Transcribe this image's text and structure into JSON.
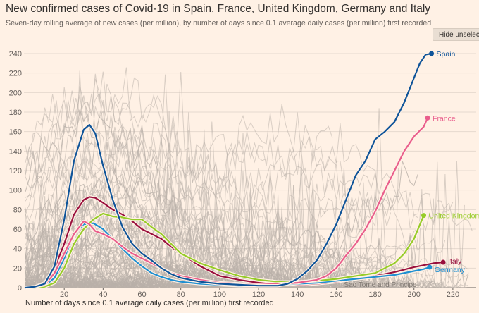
{
  "header": {
    "title": "New confirmed cases of Covid-19 in Spain, France, United Kingdom, Germany and Italy",
    "subtitle": "Seven-day rolling average of new cases (per million), by number of days since 0.1 average daily cases (per million) first recorded"
  },
  "controls": {
    "hide_button_label": "Hide unselected"
  },
  "chart_data": {
    "type": "line",
    "title": "New confirmed cases of Covid-19 in Spain, France, United Kingdom, Germany and Italy",
    "xlabel": "Number of days since 0.1 average daily cases (per million) first recorded",
    "ylabel": "",
    "xlim": [
      0,
      232
    ],
    "ylim": [
      0,
      240
    ],
    "x_ticks": [
      20,
      40,
      60,
      80,
      100,
      120,
      140,
      160,
      180,
      200,
      220
    ],
    "y_ticks": [
      0,
      20,
      40,
      60,
      80,
      100,
      120,
      140,
      160,
      180,
      200,
      220,
      240
    ],
    "grid": true,
    "colors": {
      "background": "#fff1e5",
      "grid": "#e6d9ce",
      "axis_text": "#66605c",
      "background_lines": "#b9b0aa"
    },
    "annotation_label": "Sao Tome and Principe",
    "series": [
      {
        "name": "Spain",
        "color": "#0f5499",
        "x": [
          0,
          5,
          10,
          15,
          20,
          25,
          30,
          33,
          36,
          40,
          45,
          50,
          55,
          60,
          65,
          70,
          75,
          80,
          90,
          100,
          110,
          120,
          130,
          135,
          140,
          145,
          150,
          155,
          160,
          163,
          166,
          170,
          175,
          180,
          185,
          190,
          195,
          200,
          203,
          206,
          209
        ],
        "values": [
          0,
          1,
          4,
          22,
          70,
          130,
          162,
          167,
          158,
          125,
          90,
          62,
          45,
          35,
          28,
          20,
          14,
          10,
          6,
          4,
          3,
          2,
          2,
          4,
          9,
          17,
          28,
          45,
          65,
          80,
          95,
          115,
          130,
          152,
          160,
          170,
          190,
          215,
          230,
          239,
          240
        ]
      },
      {
        "name": "France",
        "color": "#e95d8c",
        "x": [
          0,
          5,
          10,
          15,
          20,
          25,
          30,
          33,
          36,
          40,
          45,
          50,
          55,
          60,
          65,
          70,
          75,
          80,
          90,
          100,
          110,
          120,
          130,
          140,
          150,
          155,
          160,
          165,
          170,
          175,
          180,
          185,
          190,
          195,
          200,
          205,
          207
        ],
        "values": [
          0,
          1,
          3,
          15,
          35,
          55,
          68,
          65,
          58,
          55,
          50,
          42,
          35,
          30,
          25,
          20,
          15,
          12,
          8,
          5,
          4,
          3,
          4,
          5,
          8,
          12,
          20,
          33,
          45,
          60,
          78,
          100,
          120,
          140,
          155,
          165,
          174
        ]
      },
      {
        "name": "United Kingdom",
        "color": "#96cc28",
        "x": [
          0,
          5,
          10,
          15,
          20,
          25,
          30,
          35,
          40,
          45,
          50,
          55,
          60,
          65,
          70,
          75,
          80,
          90,
          100,
          110,
          120,
          130,
          140,
          150,
          160,
          170,
          180,
          190,
          195,
          200,
          205
        ],
        "values": [
          0,
          0,
          1,
          5,
          20,
          45,
          60,
          70,
          76,
          73,
          72,
          70,
          70,
          62,
          55,
          45,
          35,
          25,
          18,
          12,
          8,
          6,
          6,
          7,
          9,
          12,
          15,
          25,
          35,
          50,
          74
        ]
      },
      {
        "name": "Germany",
        "color": "#1f8fd1",
        "x": [
          0,
          5,
          10,
          15,
          20,
          25,
          30,
          35,
          40,
          45,
          50,
          55,
          60,
          65,
          70,
          75,
          80,
          90,
          100,
          110,
          120,
          130,
          140,
          150,
          160,
          170,
          180,
          190,
          200,
          205,
          208
        ],
        "values": [
          0,
          0,
          2,
          10,
          30,
          55,
          65,
          66,
          60,
          50,
          40,
          30,
          22,
          15,
          11,
          8,
          6,
          4,
          3,
          2,
          2,
          3,
          4,
          5,
          7,
          9,
          11,
          13,
          17,
          19,
          21
        ]
      },
      {
        "name": "Italy",
        "color": "#990f3d",
        "x": [
          0,
          5,
          10,
          15,
          20,
          25,
          30,
          33,
          36,
          40,
          45,
          50,
          55,
          60,
          65,
          70,
          75,
          80,
          90,
          100,
          110,
          120,
          130,
          140,
          150,
          160,
          170,
          180,
          190,
          200,
          210,
          215
        ],
        "values": [
          0,
          1,
          5,
          20,
          45,
          75,
          90,
          93,
          92,
          87,
          80,
          75,
          68,
          60,
          55,
          50,
          42,
          35,
          22,
          12,
          8,
          5,
          3,
          3,
          4,
          6,
          9,
          12,
          16,
          21,
          25,
          26
        ]
      }
    ]
  }
}
